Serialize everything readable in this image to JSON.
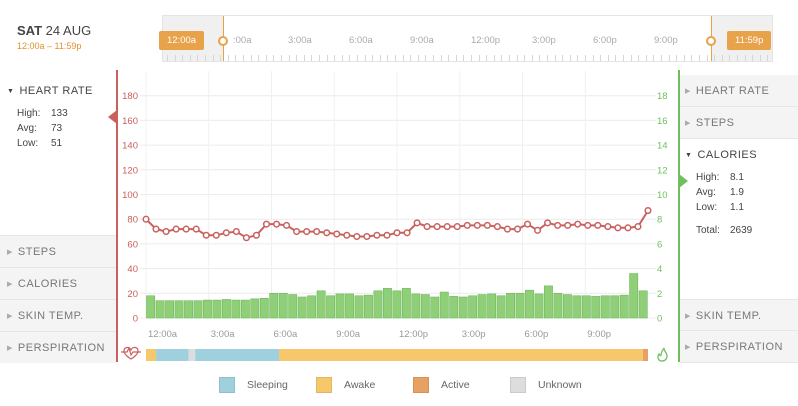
{
  "header": {
    "day": "SAT",
    "date": "24 AUG",
    "range": "12:00a – 11:59p",
    "start_tag": "12:00a",
    "end_tag": "11:59p",
    "timeline_labels": [
      "3:00a",
      "6:00a",
      "9:00a",
      "12:00p",
      "3:00p",
      "6:00p",
      "9:00p"
    ],
    "first_label": ":00a",
    "accent": "#e8a24a"
  },
  "left_panel": {
    "open_section": {
      "title": "HEART RATE",
      "high_label": "High:",
      "high": "133",
      "avg_label": "Avg:",
      "avg": "73",
      "low_label": "Low:",
      "low": "51"
    },
    "collapsed": [
      "STEPS",
      "CALORIES",
      "SKIN TEMP.",
      "PERSPIRATION"
    ]
  },
  "right_panel": {
    "collapsed_top": [
      "HEART RATE",
      "STEPS"
    ],
    "open_section": {
      "title": "CALORIES",
      "high_label": "High:",
      "high": "8.1",
      "avg_label": "Avg:",
      "avg": "1.9",
      "low_label": "Low:",
      "low": "1.1",
      "total_label": "Total:",
      "total": "2639"
    },
    "collapsed_bottom": [
      "SKIN TEMP.",
      "PERSPIRATION"
    ]
  },
  "chart_data": {
    "type": "line+bar",
    "x_labels": [
      "12:00a",
      "3:00a",
      "6:00a",
      "9:00a",
      "12:00p",
      "3:00p",
      "6:00p",
      "9:00p"
    ],
    "left_axis": {
      "label": "Heart rate",
      "ticks": [
        0,
        20,
        40,
        60,
        80,
        100,
        120,
        140,
        160,
        180
      ],
      "range": [
        0,
        200
      ],
      "color": "#c9605e"
    },
    "right_axis": {
      "label": "Calories",
      "ticks": [
        0,
        2,
        4,
        6,
        8,
        10,
        12,
        14,
        16,
        18
      ],
      "range": [
        0,
        20
      ],
      "color": "#6fbf5f"
    },
    "heart_rate": [
      80,
      72,
      70,
      72,
      72,
      72,
      67,
      67,
      69,
      70,
      65,
      67,
      76,
      76,
      75,
      70,
      70,
      70,
      69,
      68,
      67,
      66,
      66,
      67,
      67,
      69,
      69,
      77,
      74,
      74,
      74,
      74,
      75,
      75,
      75,
      74,
      72,
      72,
      76,
      71,
      77,
      75,
      75,
      76,
      75,
      75,
      74,
      73,
      73,
      74,
      87
    ],
    "calories": [
      1.8,
      1.4,
      1.4,
      1.4,
      1.4,
      1.4,
      1.45,
      1.45,
      1.5,
      1.45,
      1.45,
      1.55,
      1.6,
      2.0,
      2.0,
      1.9,
      1.7,
      1.8,
      2.2,
      1.8,
      1.95,
      1.95,
      1.8,
      1.85,
      2.2,
      2.4,
      2.2,
      2.4,
      1.95,
      1.9,
      1.7,
      2.1,
      1.75,
      1.7,
      1.8,
      1.9,
      1.95,
      1.8,
      2.0,
      2.0,
      2.25,
      1.95,
      2.6,
      2.0,
      1.9,
      1.8,
      1.8,
      1.75,
      1.8,
      1.8,
      1.85,
      3.6,
      2.2
    ],
    "activity_strip": [
      {
        "state": "awake",
        "from": 0.0,
        "to": 0.02
      },
      {
        "state": "sleeping",
        "from": 0.02,
        "to": 0.085
      },
      {
        "state": "unknown",
        "from": 0.085,
        "to": 0.098
      },
      {
        "state": "sleeping",
        "from": 0.098,
        "to": 0.265
      },
      {
        "state": "awake",
        "from": 0.265,
        "to": 0.99
      },
      {
        "state": "active",
        "from": 0.99,
        "to": 1.0
      }
    ]
  },
  "legend": [
    {
      "label": "Sleeping",
      "color": "#9fd0dd"
    },
    {
      "label": "Awake",
      "color": "#f7c76b"
    },
    {
      "label": "Active",
      "color": "#e8a063"
    },
    {
      "label": "Unknown",
      "color": "#dddddd"
    }
  ]
}
